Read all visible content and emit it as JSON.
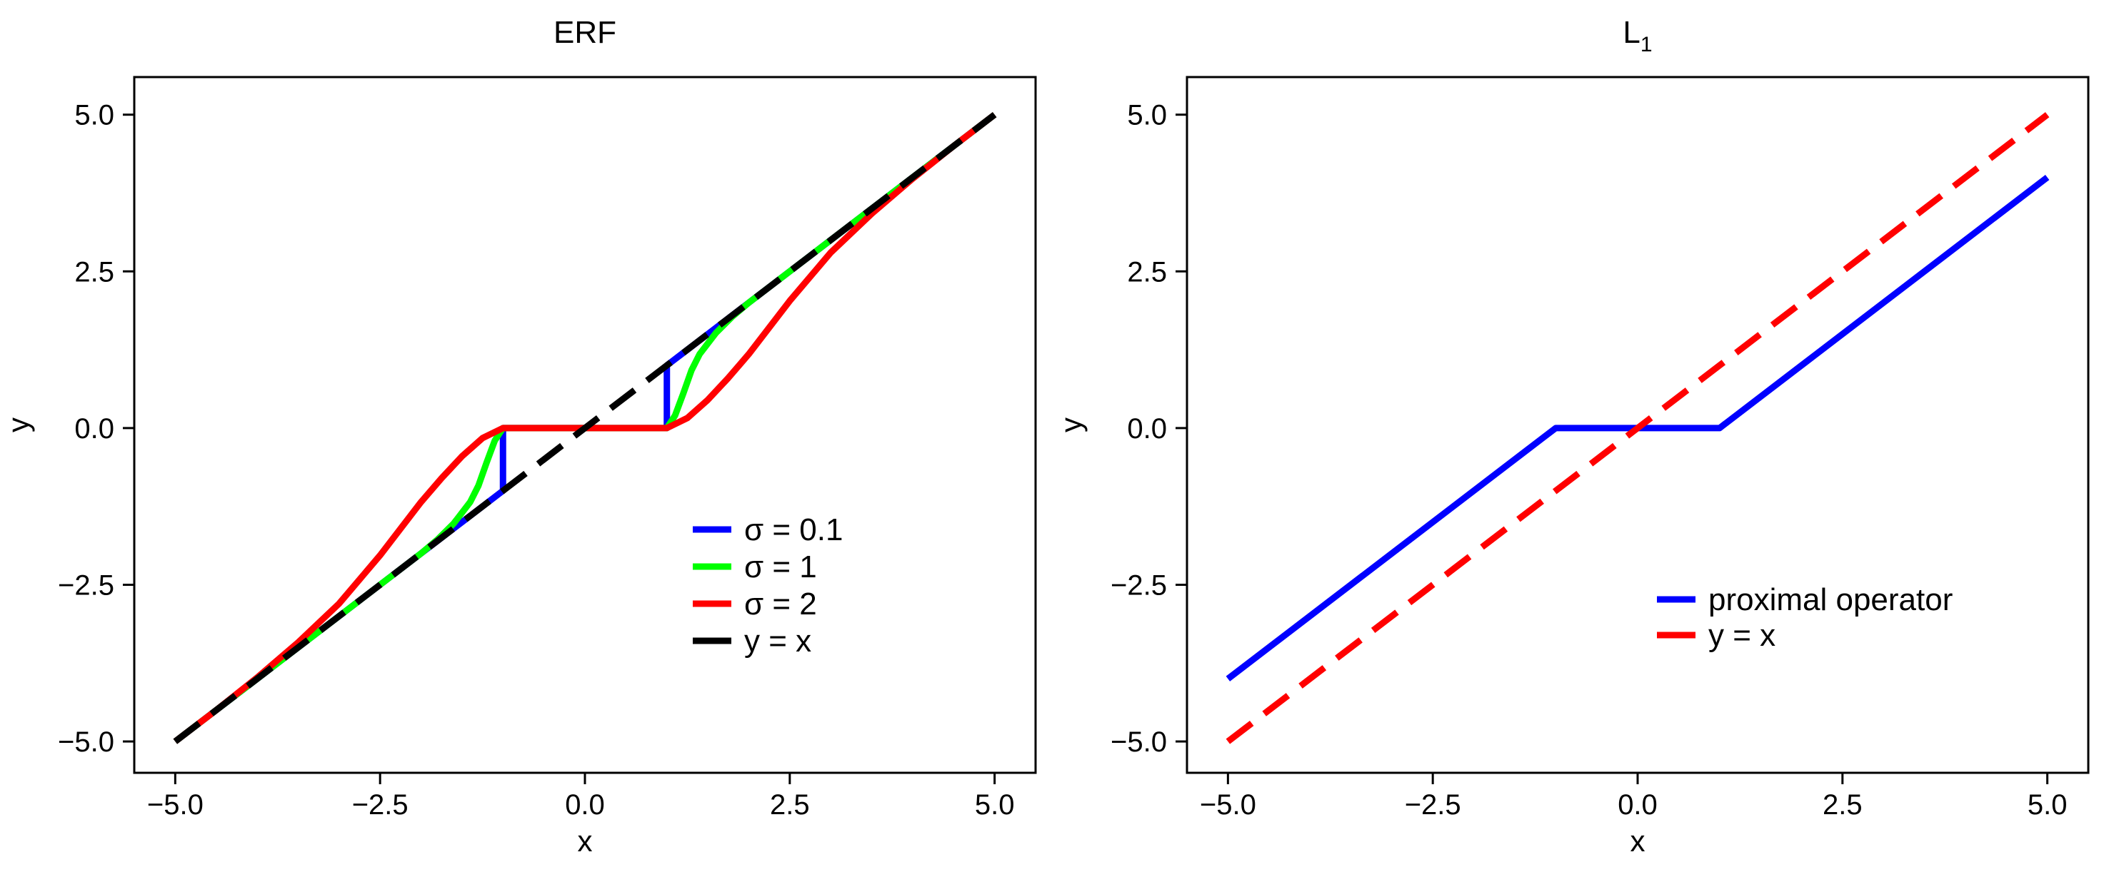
{
  "chart_data": [
    {
      "type": "line",
      "title": "ERF",
      "xlabel": "x",
      "ylabel": "y",
      "xlim": [
        -5.5,
        5.5
      ],
      "ylim": [
        -5.5,
        5.6
      ],
      "xticks": [
        -5.0,
        -2.5,
        0.0,
        2.5,
        5.0
      ],
      "yticks": [
        -5.0,
        -2.5,
        0.0,
        2.5,
        5.0
      ],
      "xtick_labels": [
        "−5.0",
        "−2.5",
        "0.0",
        "2.5",
        "5.0"
      ],
      "ytick_labels": [
        "−5.0",
        "−2.5",
        "0.0",
        "2.5",
        "5.0"
      ],
      "grid": false,
      "legend_position": "lower-right",
      "series": [
        {
          "name": "σ = 0.1",
          "color": "#0000ff",
          "style": "solid",
          "x": [
            -5.0,
            -4.0,
            -3.0,
            -2.0,
            -1.5,
            -1.2,
            -1.0,
            -1.0,
            -0.5,
            0.0,
            0.5,
            1.0,
            1.0,
            1.2,
            1.5,
            2.0,
            3.0,
            4.0,
            5.0
          ],
          "y": [
            -5.0,
            -4.0,
            -3.0,
            -2.0,
            -1.5,
            -1.2,
            -1.0,
            0.0,
            0.0,
            0.0,
            0.0,
            0.0,
            1.0,
            1.2,
            1.5,
            2.0,
            3.0,
            4.0,
            5.0
          ]
        },
        {
          "name": "σ = 1",
          "color": "#00ff00",
          "style": "solid",
          "x": [
            -5.0,
            -4.0,
            -3.0,
            -2.0,
            -1.8,
            -1.6,
            -1.4,
            -1.3,
            -1.2,
            -1.1,
            -1.0,
            -0.5,
            0.0,
            0.5,
            1.0,
            1.1,
            1.2,
            1.3,
            1.4,
            1.6,
            1.8,
            2.0,
            3.0,
            4.0,
            5.0
          ],
          "y": [
            -5.0,
            -4.0,
            -3.0,
            -2.0,
            -1.78,
            -1.52,
            -1.18,
            -0.92,
            -0.55,
            -0.2,
            0.0,
            0.0,
            0.0,
            0.0,
            0.0,
            0.2,
            0.55,
            0.92,
            1.18,
            1.52,
            1.78,
            2.0,
            3.0,
            4.0,
            5.0
          ]
        },
        {
          "name": "σ = 2",
          "color": "#ff0000",
          "style": "solid",
          "x": [
            -5.0,
            -4.5,
            -4.0,
            -3.5,
            -3.0,
            -2.5,
            -2.0,
            -1.75,
            -1.5,
            -1.25,
            -1.0,
            -0.5,
            0.0,
            0.5,
            1.0,
            1.25,
            1.5,
            1.75,
            2.0,
            2.5,
            3.0,
            3.5,
            4.0,
            4.5,
            5.0
          ],
          "y": [
            -5.0,
            -4.5,
            -3.98,
            -3.42,
            -2.8,
            -2.03,
            -1.18,
            -0.8,
            -0.45,
            -0.16,
            0.0,
            0.0,
            0.0,
            0.0,
            0.0,
            0.16,
            0.45,
            0.8,
            1.18,
            2.03,
            2.8,
            3.42,
            3.98,
            4.5,
            5.0
          ]
        },
        {
          "name": "y = x",
          "color": "#000000",
          "style": "dashed",
          "x": [
            -5.0,
            5.0
          ],
          "y": [
            -5.0,
            5.0
          ]
        }
      ]
    },
    {
      "type": "line",
      "title": "L",
      "title_subscript": "1",
      "xlabel": "x",
      "ylabel": "y",
      "xlim": [
        -5.5,
        5.5
      ],
      "ylim": [
        -5.5,
        5.6
      ],
      "xticks": [
        -5.0,
        -2.5,
        0.0,
        2.5,
        5.0
      ],
      "yticks": [
        -5.0,
        -2.5,
        0.0,
        2.5,
        5.0
      ],
      "xtick_labels": [
        "−5.0",
        "−2.5",
        "0.0",
        "2.5",
        "5.0"
      ],
      "ytick_labels": [
        "−5.0",
        "−2.5",
        "0.0",
        "2.5",
        "5.0"
      ],
      "grid": false,
      "legend_position": "lower-right",
      "series": [
        {
          "name": "proximal operator",
          "color": "#0000ff",
          "style": "solid",
          "x": [
            -5.0,
            -1.0,
            1.0,
            5.0
          ],
          "y": [
            -4.0,
            0.0,
            0.0,
            4.0
          ]
        },
        {
          "name": "y = x",
          "color": "#ff0000",
          "style": "dashed",
          "x": [
            -5.0,
            5.0
          ],
          "y": [
            -5.0,
            5.0
          ]
        }
      ]
    }
  ]
}
